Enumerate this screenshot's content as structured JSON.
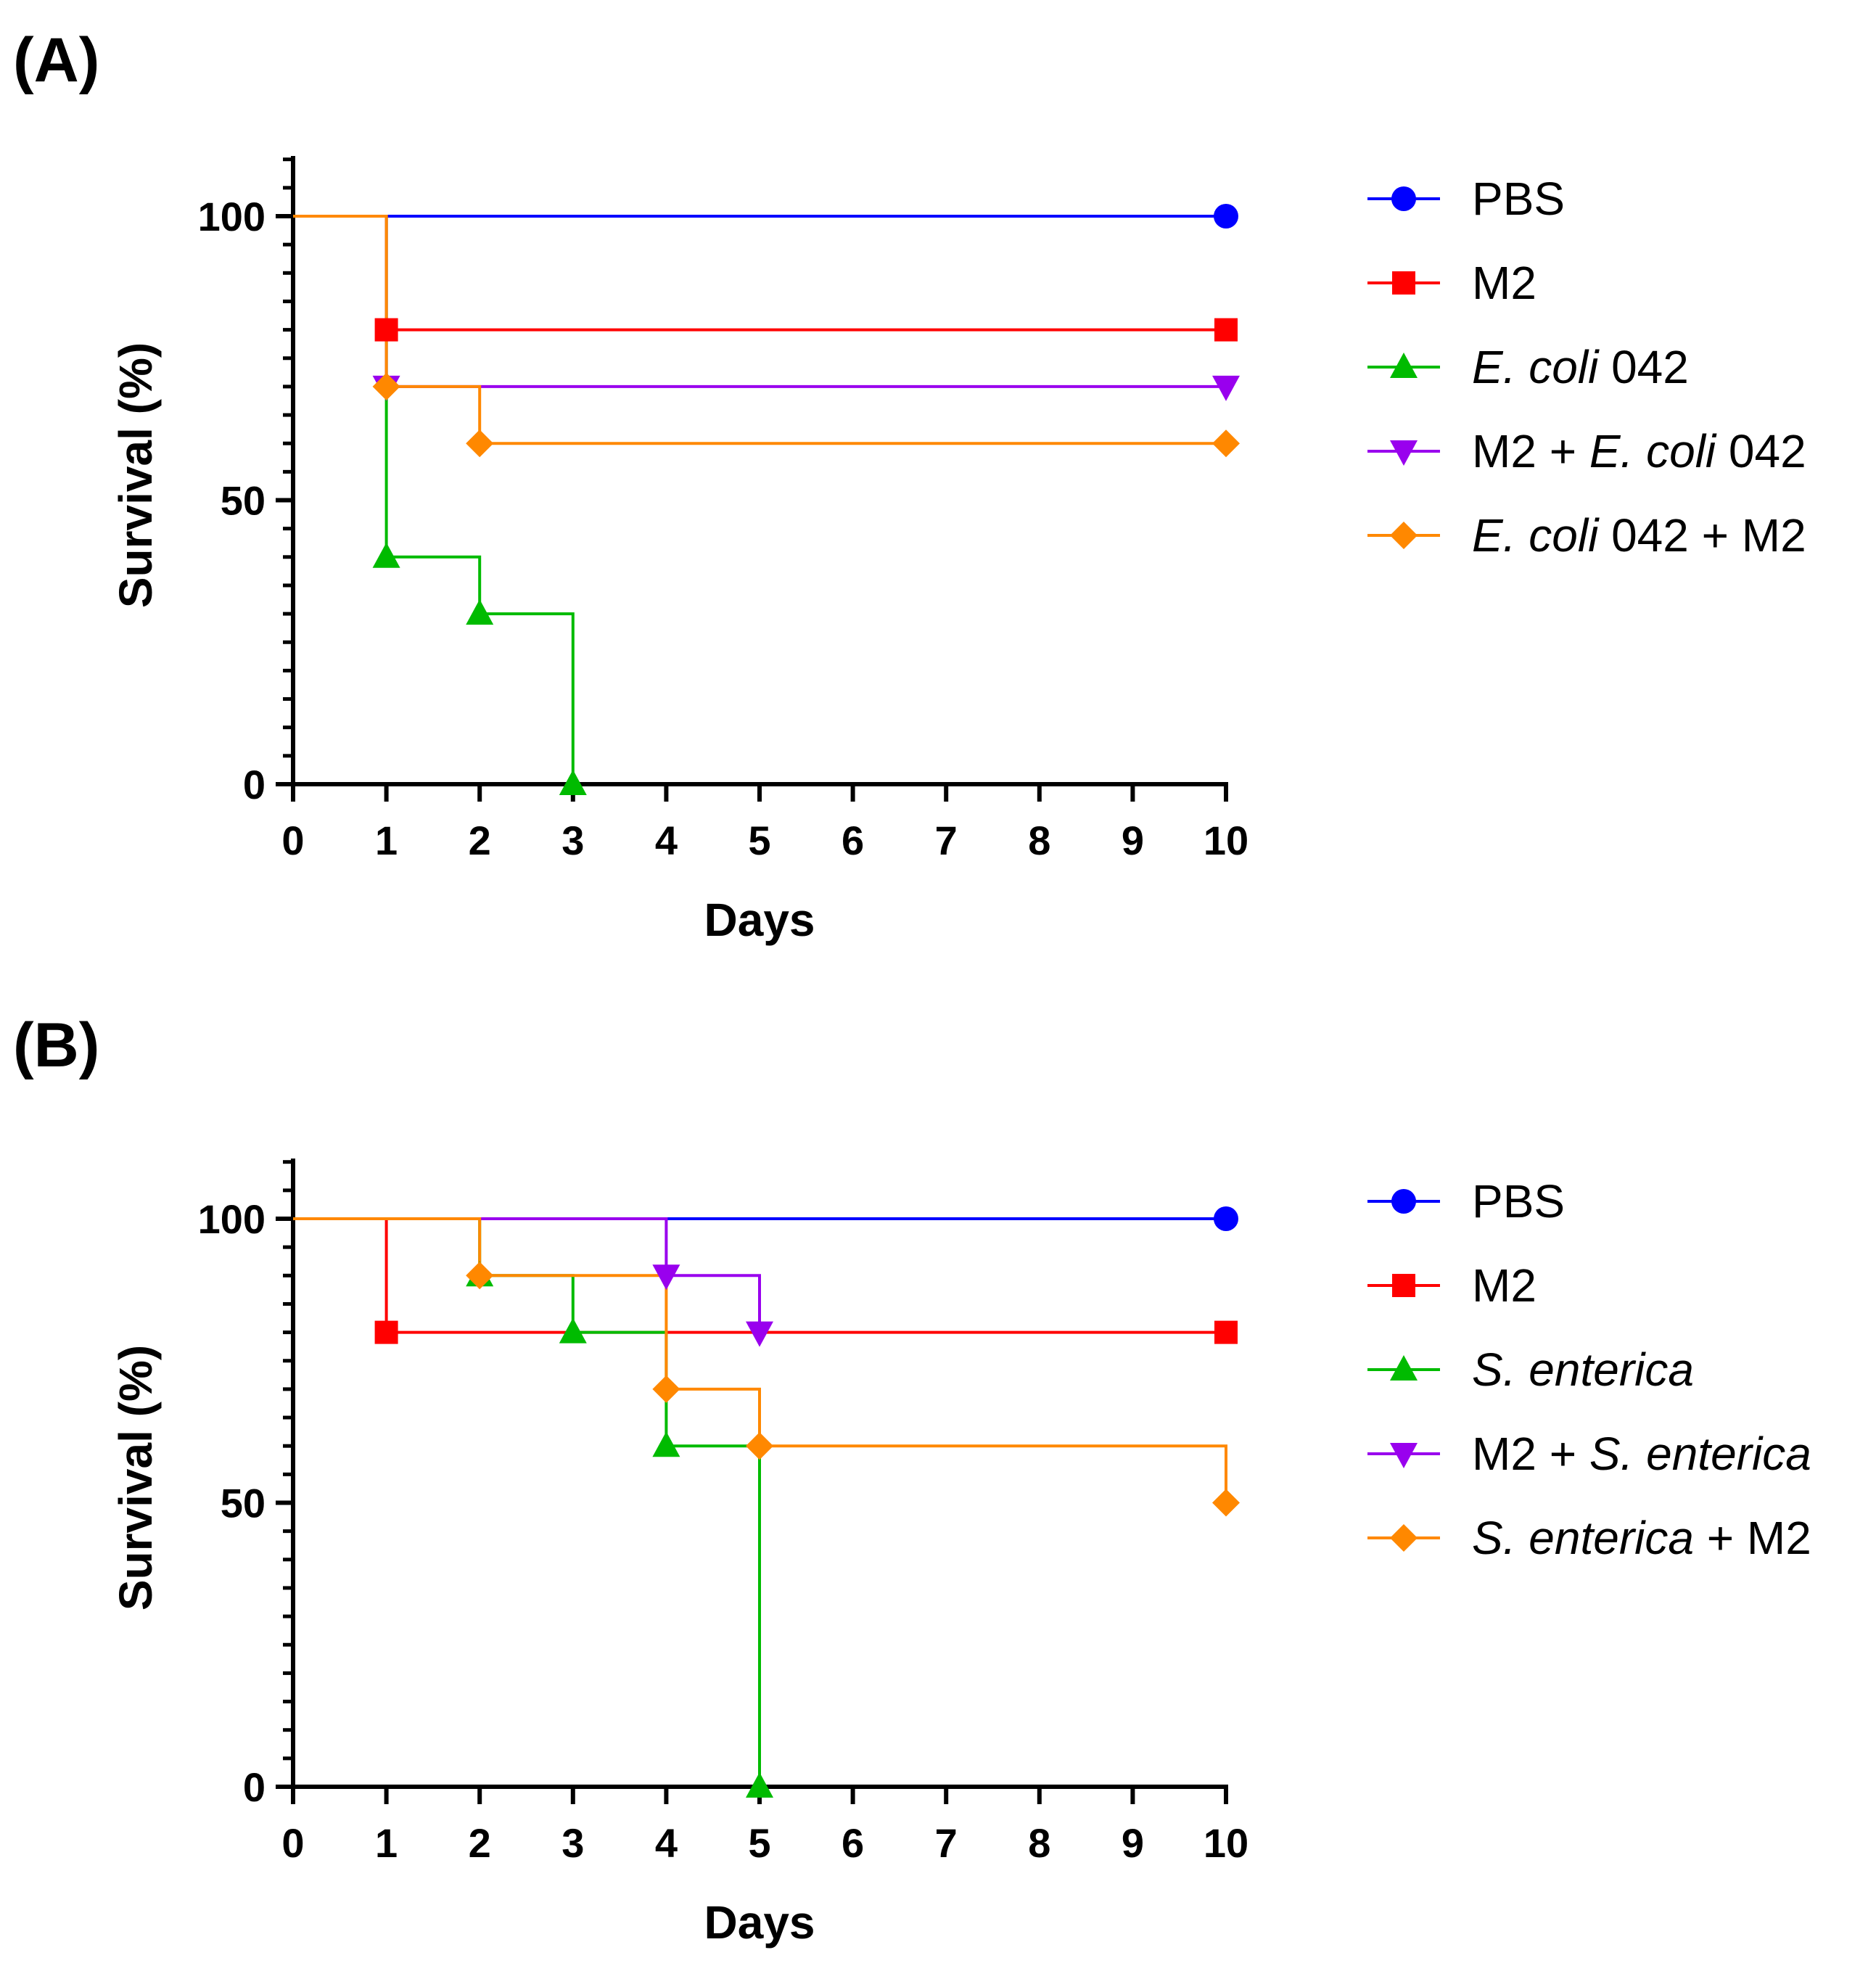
{
  "figure": {
    "panels": [
      "(A)",
      "(B)"
    ]
  },
  "chart_data": [
    {
      "panel": "(A)",
      "type": "line",
      "subtype": "kaplan-meier-step",
      "xlabel": "Days",
      "ylabel": "Survival (%)",
      "x_ticks": [
        0,
        1,
        2,
        3,
        4,
        5,
        6,
        7,
        8,
        9,
        10
      ],
      "y_ticks": [
        0,
        50,
        100
      ],
      "xlim": [
        0,
        10
      ],
      "ylim": [
        0,
        110
      ],
      "legend_position": "right",
      "series": [
        {
          "name": "PBS",
          "legend": [
            {
              "text": "PBS",
              "italic": false
            }
          ],
          "color": "#0000ff",
          "marker": "circle",
          "steps": [
            [
              0,
              100
            ],
            [
              10,
              100
            ]
          ],
          "markers": [
            [
              10,
              100
            ]
          ]
        },
        {
          "name": "M2",
          "legend": [
            {
              "text": "M2",
              "italic": false
            }
          ],
          "color": "#ff0000",
          "marker": "square",
          "steps": [
            [
              0,
              100
            ],
            [
              1,
              80
            ],
            [
              10,
              80
            ]
          ],
          "markers": [
            [
              1,
              80
            ],
            [
              10,
              80
            ]
          ]
        },
        {
          "name": "E. coli 042",
          "legend": [
            {
              "text": "E. coli",
              "italic": true
            },
            {
              "text": " 042",
              "italic": false
            }
          ],
          "color": "#00bb00",
          "marker": "triangle-up",
          "steps": [
            [
              0,
              100
            ],
            [
              1,
              40
            ],
            [
              2,
              30
            ],
            [
              3,
              0
            ]
          ],
          "markers": [
            [
              1,
              40
            ],
            [
              2,
              30
            ],
            [
              3,
              0
            ]
          ]
        },
        {
          "name": "M2 + E. coli 042",
          "legend": [
            {
              "text": "M2 + ",
              "italic": false
            },
            {
              "text": "E. coli",
              "italic": true
            },
            {
              "text": " 042",
              "italic": false
            }
          ],
          "color": "#9900ee",
          "marker": "triangle-down",
          "steps": [
            [
              0,
              100
            ],
            [
              1,
              70
            ],
            [
              10,
              70
            ]
          ],
          "markers": [
            [
              1,
              70
            ],
            [
              10,
              70
            ]
          ]
        },
        {
          "name": "E. coli 042 + M2",
          "legend": [
            {
              "text": "E. coli",
              "italic": true
            },
            {
              "text": " 042 + M2",
              "italic": false
            }
          ],
          "color": "#ff8800",
          "marker": "diamond",
          "steps": [
            [
              0,
              100
            ],
            [
              1,
              70
            ],
            [
              2,
              60
            ],
            [
              10,
              60
            ]
          ],
          "markers": [
            [
              1,
              70
            ],
            [
              2,
              60
            ],
            [
              10,
              60
            ]
          ]
        }
      ]
    },
    {
      "panel": "(B)",
      "type": "line",
      "subtype": "kaplan-meier-step",
      "xlabel": "Days",
      "ylabel": "Survival (%)",
      "x_ticks": [
        0,
        1,
        2,
        3,
        4,
        5,
        6,
        7,
        8,
        9,
        10
      ],
      "y_ticks": [
        0,
        50,
        100
      ],
      "xlim": [
        0,
        10
      ],
      "ylim": [
        0,
        110
      ],
      "legend_position": "right",
      "series": [
        {
          "name": "PBS",
          "legend": [
            {
              "text": "PBS",
              "italic": false
            }
          ],
          "color": "#0000ff",
          "marker": "circle",
          "steps": [
            [
              0,
              100
            ],
            [
              10,
              100
            ]
          ],
          "markers": [
            [
              10,
              100
            ]
          ]
        },
        {
          "name": "M2",
          "legend": [
            {
              "text": "M2",
              "italic": false
            }
          ],
          "color": "#ff0000",
          "marker": "square",
          "steps": [
            [
              0,
              100
            ],
            [
              1,
              80
            ],
            [
              10,
              80
            ]
          ],
          "markers": [
            [
              1,
              80
            ],
            [
              10,
              80
            ]
          ]
        },
        {
          "name": "S. enterica",
          "legend": [
            {
              "text": "S. enterica",
              "italic": true
            }
          ],
          "color": "#00bb00",
          "marker": "triangle-up",
          "steps": [
            [
              0,
              100
            ],
            [
              2,
              90
            ],
            [
              3,
              80
            ],
            [
              4,
              60
            ],
            [
              5,
              0
            ]
          ],
          "markers": [
            [
              2,
              90
            ],
            [
              3,
              80
            ],
            [
              4,
              60
            ],
            [
              5,
              0
            ]
          ]
        },
        {
          "name": "M2 + S. enterica",
          "legend": [
            {
              "text": "M2 + ",
              "italic": false
            },
            {
              "text": "S. enterica",
              "italic": true
            }
          ],
          "color": "#9900ee",
          "marker": "triangle-down",
          "steps": [
            [
              0,
              100
            ],
            [
              4,
              90
            ],
            [
              5,
              80
            ]
          ],
          "markers": [
            [
              4,
              90
            ],
            [
              5,
              80
            ]
          ]
        },
        {
          "name": "S. enterica + M2",
          "legend": [
            {
              "text": "S. enterica",
              "italic": true
            },
            {
              "text": " + M2",
              "italic": false
            }
          ],
          "color": "#ff8800",
          "marker": "diamond",
          "steps": [
            [
              0,
              100
            ],
            [
              2,
              90
            ],
            [
              4,
              70
            ],
            [
              5,
              60
            ],
            [
              10,
              50
            ]
          ],
          "markers": [
            [
              2,
              90
            ],
            [
              4,
              70
            ],
            [
              5,
              60
            ],
            [
              10,
              50
            ]
          ]
        }
      ]
    }
  ]
}
